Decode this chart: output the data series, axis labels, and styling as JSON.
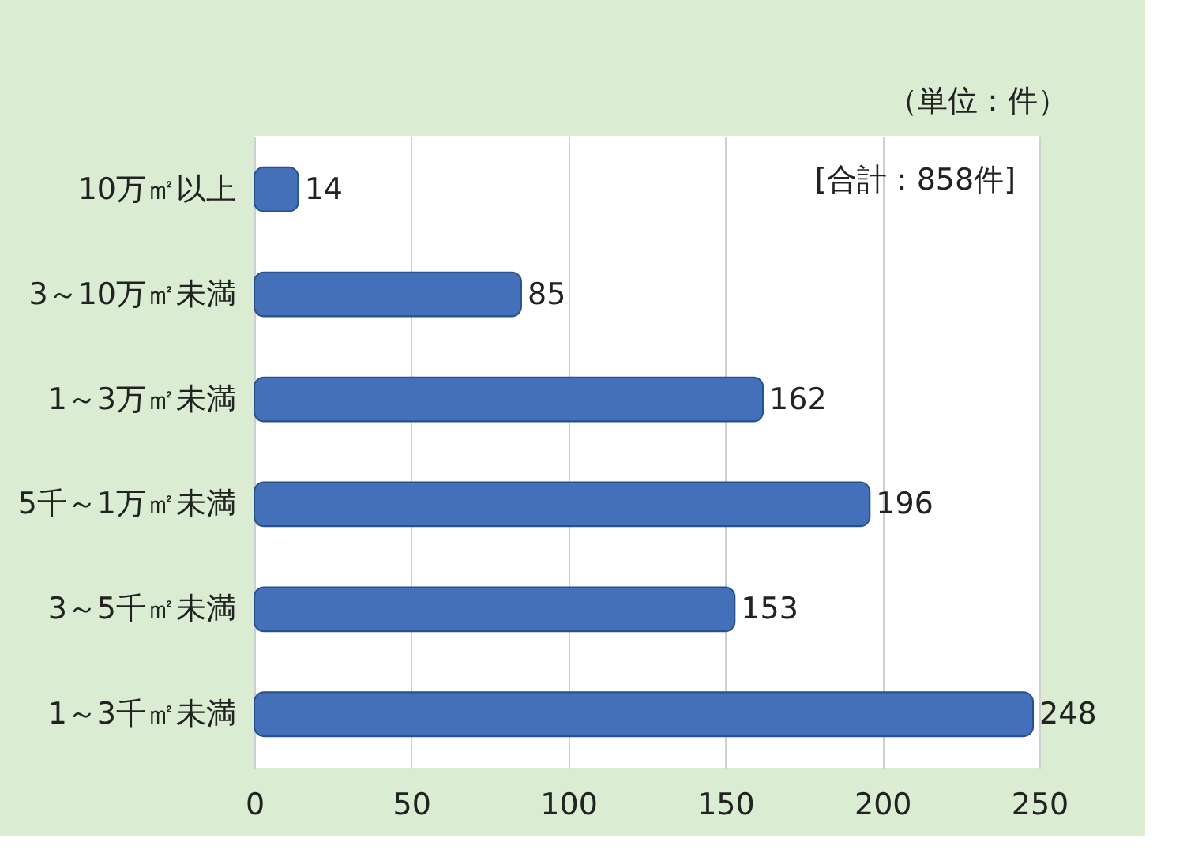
{
  "chart_data": {
    "type": "bar",
    "orientation": "horizontal",
    "categories": [
      "10万㎡以上",
      "3～10万㎡未満",
      "1～3万㎡未満",
      "5千～1万㎡未満",
      "3～5千㎡未満",
      "1～3千㎡未満"
    ],
    "values": [
      14,
      85,
      162,
      196,
      153,
      248
    ],
    "color": "#4370b9",
    "xlim": [
      0,
      250
    ],
    "xticks": [
      0,
      50,
      100,
      150,
      200,
      250
    ],
    "grid": "x",
    "data_labels": true,
    "annotations": [
      "（単位：件）",
      "[合計：858件]"
    ]
  }
}
